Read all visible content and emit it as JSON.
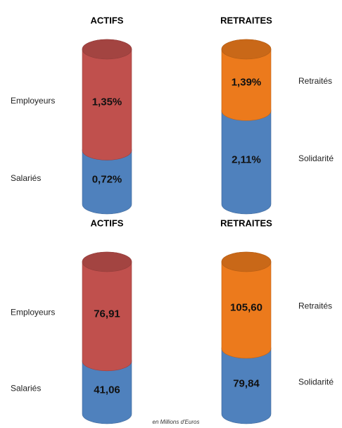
{
  "chart_data": [
    {
      "type": "bar",
      "stacked": true,
      "title": "ACTIFS",
      "series": [
        {
          "name": "Salariés",
          "color": "#4f81bd",
          "values": [
            0.72
          ],
          "value_labels": [
            "0,72%"
          ]
        },
        {
          "name": "Employeurs",
          "color": "#c0504d",
          "values": [
            1.35
          ],
          "value_labels": [
            "1,35%"
          ]
        }
      ]
    },
    {
      "type": "bar",
      "stacked": true,
      "title": "RETRAITES",
      "series": [
        {
          "name": "Solidarité",
          "color": "#4f81bd",
          "values": [
            2.11
          ],
          "value_labels": [
            "2,11%"
          ]
        },
        {
          "name": "Retraités",
          "color": "#ec7a1c",
          "values": [
            1.39
          ],
          "value_labels": [
            "1,39%"
          ]
        }
      ]
    },
    {
      "type": "bar",
      "stacked": true,
      "title": "ACTIFS",
      "series": [
        {
          "name": "Salariés",
          "color": "#4f81bd",
          "values": [
            41.06
          ],
          "value_labels": [
            "41,06"
          ]
        },
        {
          "name": "Employeurs",
          "color": "#c0504d",
          "values": [
            76.91
          ],
          "value_labels": [
            "76,91"
          ]
        }
      ]
    },
    {
      "type": "bar",
      "stacked": true,
      "title": "RETRAITES",
      "series": [
        {
          "name": "Solidarité",
          "color": "#4f81bd",
          "values": [
            79.84
          ],
          "value_labels": [
            "79,84"
          ]
        },
        {
          "name": "Retraités",
          "color": "#ec7a1c",
          "values": [
            105.6
          ],
          "value_labels": [
            "105,60"
          ]
        }
      ]
    }
  ],
  "footnote": "en Millions d'Euros"
}
